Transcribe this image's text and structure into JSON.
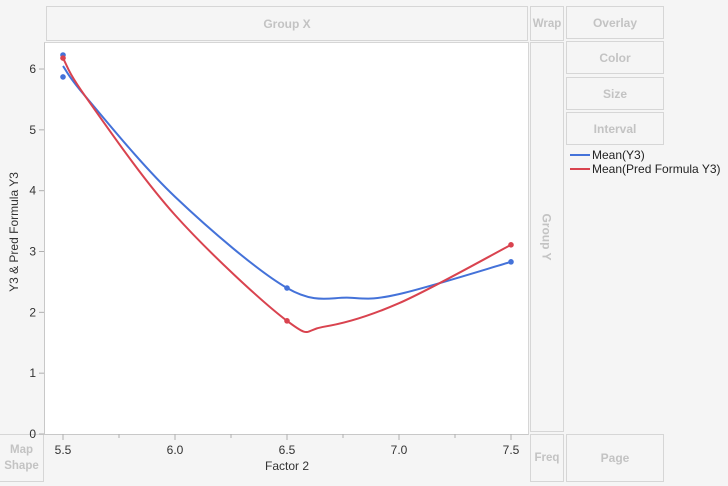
{
  "drop_zones": {
    "group_x": "Group X",
    "group_y": "Group Y",
    "wrap": "Wrap",
    "overlay": "Overlay",
    "color": "Color",
    "size": "Size",
    "interval": "Interval",
    "freq": "Freq",
    "page": "Page",
    "map_shape_line1": "Map",
    "map_shape_line2": "Shape"
  },
  "legend": {
    "items": [
      {
        "label": "Mean(Y3)",
        "color": "#4472d9"
      },
      {
        "label": "Mean(Pred Formula Y3)",
        "color": "#d9434f"
      }
    ]
  },
  "axes": {
    "x_title": "Factor 2",
    "y_title": "Y3 & Pred Formula Y3",
    "x_ticks": [
      "5.5",
      "6.0",
      "6.5",
      "7.0",
      "7.5"
    ],
    "y_ticks": [
      "0",
      "1",
      "2",
      "3",
      "4",
      "5",
      "6"
    ]
  },
  "chart_data": {
    "type": "line",
    "title": "",
    "xlabel": "Factor 2",
    "ylabel": "Y3 & Pred Formula Y3",
    "xlim": [
      5.45,
      7.57
    ],
    "ylim": [
      0,
      6.4
    ],
    "x_ticks": [
      5.5,
      6.0,
      6.5,
      7.0,
      7.5
    ],
    "y_ticks": [
      0,
      1,
      2,
      3,
      4,
      5,
      6
    ],
    "grid": false,
    "legend_position": "right",
    "series": [
      {
        "name": "Mean(Y3)",
        "color": "#4472d9",
        "points": [
          [
            5.5,
            6.23
          ],
          [
            5.5,
            5.87
          ],
          [
            6.5,
            2.4
          ],
          [
            7.5,
            2.83
          ]
        ],
        "smooth_curve": [
          [
            5.5,
            6.05
          ],
          [
            5.6,
            5.55
          ],
          [
            6.0,
            3.9
          ],
          [
            6.5,
            2.4
          ],
          [
            6.78,
            2.24
          ],
          [
            7.0,
            2.3
          ],
          [
            7.5,
            2.83
          ]
        ]
      },
      {
        "name": "Mean(Pred Formula Y3)",
        "color": "#d9434f",
        "points": [
          [
            5.5,
            6.18
          ],
          [
            6.5,
            1.86
          ],
          [
            7.5,
            3.11
          ]
        ],
        "smooth_curve": [
          [
            5.5,
            6.18
          ],
          [
            5.6,
            5.55
          ],
          [
            6.0,
            3.6
          ],
          [
            6.5,
            1.86
          ],
          [
            6.66,
            1.76
          ],
          [
            7.0,
            2.15
          ],
          [
            7.5,
            3.11
          ]
        ]
      }
    ]
  }
}
